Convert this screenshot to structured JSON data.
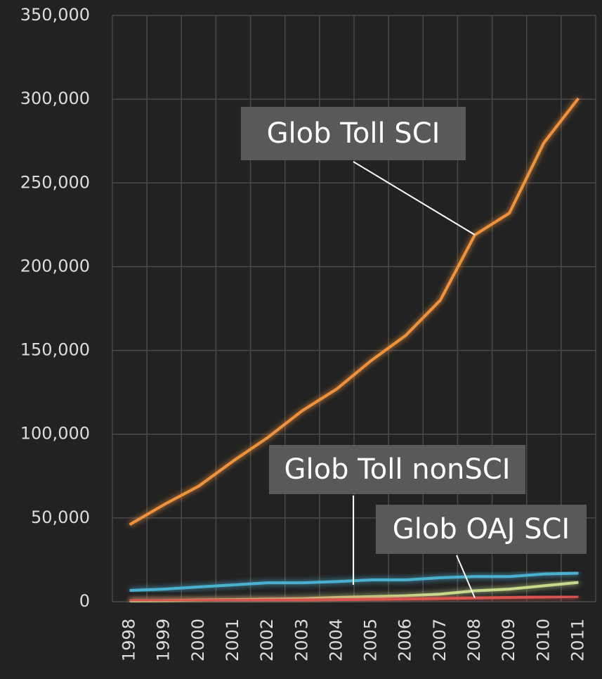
{
  "chart_data": {
    "type": "line",
    "categories": [
      "1998",
      "1999",
      "2000",
      "2001",
      "2002",
      "2003",
      "2004",
      "2005",
      "2006",
      "2007",
      "2008",
      "2009",
      "2010",
      "2011"
    ],
    "series": [
      {
        "name": "Glob Toll SCI",
        "color": "#f0923a",
        "values": [
          46000,
          58000,
          69000,
          84000,
          98000,
          114000,
          127000,
          144000,
          159000,
          180000,
          219000,
          232000,
          274000,
          300500
        ]
      },
      {
        "name": "Glob Toll nonSCI",
        "color": "#4bb0d0",
        "values": [
          6700,
          7500,
          8800,
          10000,
          11300,
          11300,
          12000,
          13000,
          13000,
          14300,
          15000,
          15000,
          16500,
          17000
        ]
      },
      {
        "color": "#c7d98a",
        "values": [
          500,
          700,
          1000,
          1200,
          1500,
          1800,
          2500,
          3000,
          3500,
          4500,
          6500,
          7500,
          9500,
          11500
        ]
      },
      {
        "name": "Glob OAJ SCI",
        "color": "#d9534f",
        "values": [
          500,
          600,
          700,
          800,
          900,
          1000,
          1200,
          1400,
          1600,
          1900,
          2200,
          2500,
          2800,
          3100
        ]
      }
    ],
    "ylim": [
      0,
      350000
    ],
    "yticks": [
      {
        "value": 0,
        "label": "0"
      },
      {
        "value": 50000,
        "label": "50,000"
      },
      {
        "value": 100000,
        "label": "100,000"
      },
      {
        "value": 150000,
        "label": "150,000"
      },
      {
        "value": 200000,
        "label": "200,000"
      },
      {
        "value": 250000,
        "label": "250,000"
      },
      {
        "value": 300000,
        "label": "300,000"
      },
      {
        "value": 350000,
        "label": "350,000"
      }
    ],
    "grid": true
  }
}
